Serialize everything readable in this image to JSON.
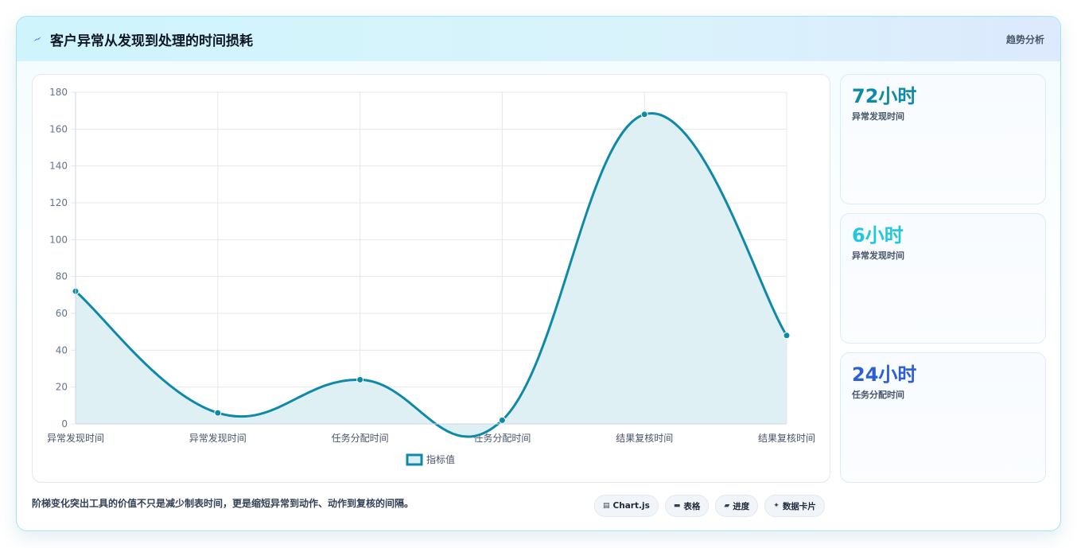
{
  "header": {
    "title": "客户异常从发现到处理的时间损耗",
    "tag": "趋势分析",
    "icon": "bolt-icon"
  },
  "chart_data": {
    "type": "line",
    "categories": [
      "异常发现时间",
      "异常发现时间",
      "任务分配时间",
      "任务分配时间",
      "结果复核时间",
      "结果复核时间"
    ],
    "series": [
      {
        "name": "指标值",
        "values": [
          72,
          6,
          24,
          2,
          168,
          48
        ]
      }
    ],
    "ylim": [
      0,
      180
    ],
    "yticks": [
      0,
      20,
      40,
      60,
      80,
      100,
      120,
      140,
      160,
      180
    ],
    "grid": true,
    "legend": "bottom",
    "line_color": "#0e8aa8",
    "fill_color": "#dbeef4"
  },
  "stats": [
    {
      "value": "72小时",
      "label": "异常发现时间",
      "color": "#0e8aa8"
    },
    {
      "value": "6小时",
      "label": "异常发现时间",
      "color": "#22c6dd"
    },
    {
      "value": "24小时",
      "label": "任务分配时间",
      "color": "#2b5ed8"
    }
  ],
  "footer": {
    "note": "阶梯变化突出工具的价值不只是减少制表时间，更是缩短异常到动作、动作到复核的间隔。",
    "chips": [
      {
        "icon": "▤",
        "label": "Chart.js",
        "icon_name": "chart-icon"
      },
      {
        "icon": "▬",
        "label": "表格",
        "icon_name": "table-icon"
      },
      {
        "icon": "▰",
        "label": "进度",
        "icon_name": "progress-icon"
      },
      {
        "icon": "✦",
        "label": "数据卡片",
        "icon_name": "card-icon"
      }
    ]
  }
}
